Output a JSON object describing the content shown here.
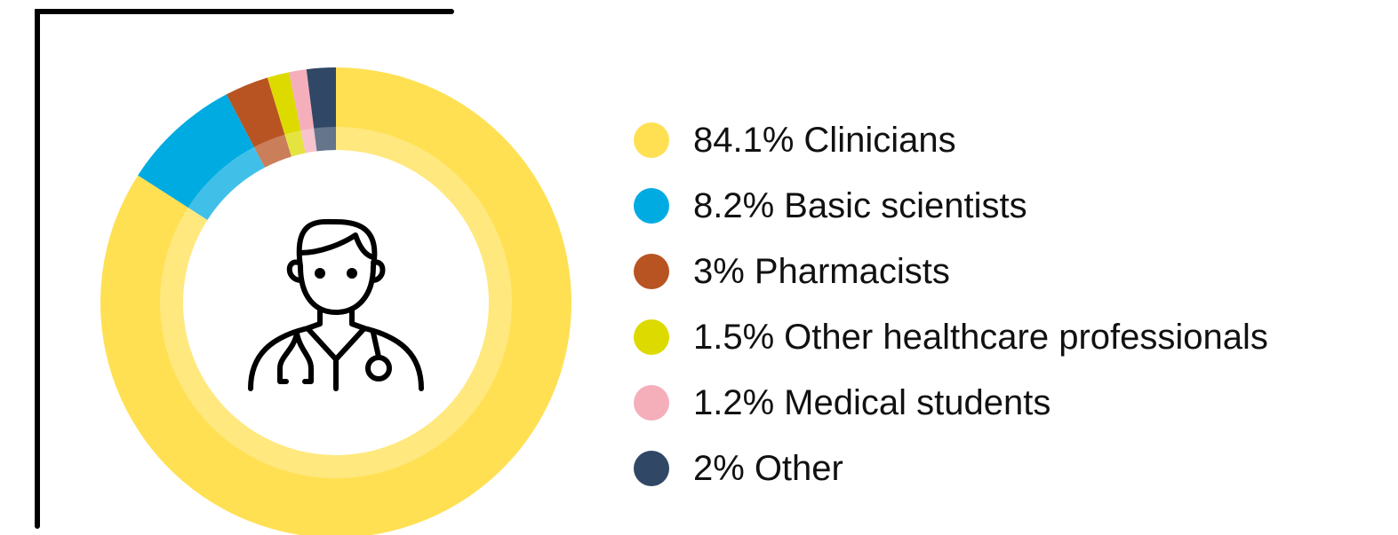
{
  "chart_data": {
    "type": "donut",
    "categories": [
      "Clinicians",
      "Basic scientists",
      "Pharmacists",
      "Other healthcare professionals",
      "Medical students",
      "Other"
    ],
    "values": [
      84.1,
      8.2,
      3,
      1.5,
      1.2,
      2
    ],
    "value_labels": [
      "84.1%",
      "8.2%",
      "3%",
      "1.5%",
      "1.2%",
      "2%"
    ],
    "colors": [
      "#FFE053",
      "#00ABE2",
      "#B85322",
      "#DDDA00",
      "#F4AFBB",
      "#314766"
    ]
  }
}
